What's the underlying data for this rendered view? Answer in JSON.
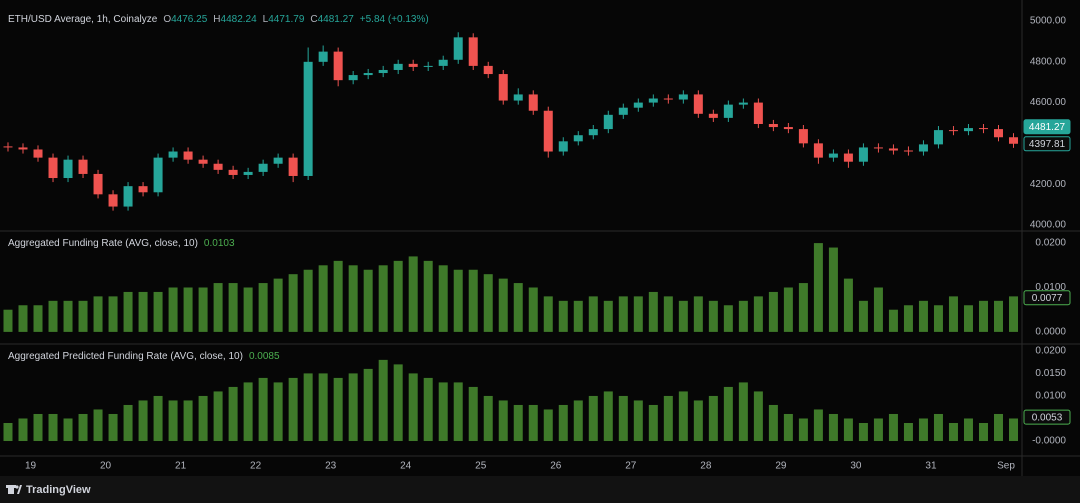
{
  "chart_data": [
    {
      "type": "candlestick",
      "title": "ETH/USD Average, 1h, Coinalyze",
      "ohlc_legend": [
        {
          "label": "O",
          "value": "4476.25"
        },
        {
          "label": "H",
          "value": "4482.24"
        },
        {
          "label": "L",
          "value": "4471.79"
        },
        {
          "label": "C",
          "value": "4481.27"
        }
      ],
      "change": "+5.84 (+0.13%)",
      "up_color": "#26a69a",
      "down_color": "#ef5350",
      "xlim": [
        18.7,
        32.2
      ],
      "x": [
        18.7,
        18.9,
        19.1,
        19.3,
        19.5,
        19.7,
        19.9,
        20.1,
        20.3,
        20.5,
        20.7,
        20.9,
        21.1,
        21.3,
        21.5,
        21.7,
        21.9,
        22.1,
        22.3,
        22.5,
        22.7,
        22.9,
        23.1,
        23.3,
        23.5,
        23.7,
        23.9,
        24.1,
        24.3,
        24.5,
        24.7,
        24.9,
        25.1,
        25.3,
        25.5,
        25.7,
        25.9,
        26.1,
        26.3,
        26.5,
        26.7,
        26.9,
        27.1,
        27.3,
        27.5,
        27.7,
        27.9,
        28.1,
        28.3,
        28.5,
        28.7,
        28.9,
        29.1,
        29.3,
        29.5,
        29.7,
        29.9,
        30.1,
        30.3,
        30.5,
        30.7,
        30.9,
        31.1,
        31.3,
        31.5,
        31.7,
        31.9,
        32.1
      ],
      "open": [
        4385,
        4380,
        4370,
        4330,
        4230,
        4320,
        4250,
        4150,
        4090,
        4190,
        4160,
        4330,
        4360,
        4320,
        4300,
        4270,
        4245,
        4260,
        4300,
        4330,
        4240,
        4800,
        4850,
        4710,
        4735,
        4745,
        4760,
        4790,
        4775,
        4780,
        4810,
        4920,
        4780,
        4740,
        4610,
        4640,
        4560,
        4360,
        4410,
        4440,
        4470,
        4540,
        4575,
        4600,
        4620,
        4615,
        4640,
        4545,
        4525,
        4590,
        4600,
        4495,
        4480,
        4470,
        4400,
        4330,
        4350,
        4310,
        4380,
        4375,
        4365,
        4360,
        4395,
        4465,
        4460,
        4475,
        4470,
        4430
      ],
      "high": [
        4405,
        4400,
        4390,
        4350,
        4340,
        4340,
        4270,
        4170,
        4210,
        4210,
        4350,
        4380,
        4380,
        4340,
        4320,
        4290,
        4280,
        4320,
        4350,
        4350,
        4870,
        4880,
        4870,
        4755,
        4765,
        4780,
        4810,
        4810,
        4800,
        4830,
        4945,
        4940,
        4800,
        4760,
        4670,
        4660,
        4580,
        4430,
        4460,
        4490,
        4560,
        4595,
        4620,
        4640,
        4640,
        4660,
        4660,
        4565,
        4610,
        4620,
        4620,
        4515,
        4500,
        4490,
        4420,
        4370,
        4370,
        4400,
        4400,
        4395,
        4385,
        4415,
        4485,
        4485,
        4495,
        4495,
        4490,
        4450
      ],
      "low": [
        4360,
        4350,
        4310,
        4210,
        4210,
        4230,
        4130,
        4070,
        4070,
        4140,
        4140,
        4310,
        4300,
        4280,
        4250,
        4225,
        4225,
        4240,
        4280,
        4210,
        4220,
        4780,
        4680,
        4690,
        4715,
        4725,
        4740,
        4755,
        4755,
        4760,
        4790,
        4760,
        4720,
        4590,
        4590,
        4540,
        4330,
        4340,
        4390,
        4420,
        4450,
        4520,
        4555,
        4580,
        4595,
        4595,
        4525,
        4505,
        4505,
        4570,
        4475,
        4460,
        4450,
        4380,
        4300,
        4310,
        4280,
        4290,
        4355,
        4345,
        4340,
        4340,
        4375,
        4440,
        4440,
        4450,
        4410,
        4378
      ],
      "close": [
        4380,
        4370,
        4330,
        4230,
        4320,
        4250,
        4150,
        4090,
        4190,
        4160,
        4330,
        4360,
        4320,
        4300,
        4270,
        4245,
        4260,
        4300,
        4330,
        4240,
        4800,
        4850,
        4710,
        4735,
        4745,
        4760,
        4790,
        4775,
        4780,
        4810,
        4920,
        4780,
        4740,
        4610,
        4640,
        4560,
        4360,
        4410,
        4440,
        4470,
        4540,
        4575,
        4600,
        4620,
        4615,
        4640,
        4545,
        4525,
        4590,
        4600,
        4495,
        4480,
        4470,
        4400,
        4330,
        4350,
        4310,
        4380,
        4375,
        4365,
        4360,
        4395,
        4465,
        4460,
        4475,
        4470,
        4430,
        4398
      ],
      "ylim": [
        3975,
        5064
      ],
      "yticks": [
        {
          "value": 4000,
          "label": "4000.00"
        },
        {
          "value": 4200,
          "label": "4200.00"
        },
        {
          "value": 4600,
          "label": "4600.00"
        },
        {
          "value": 4800,
          "label": "4800.00"
        },
        {
          "value": 5000,
          "label": "5000.00"
        }
      ],
      "markers": [
        {
          "value": 4481.27,
          "color": "#26a69a",
          "filled": true
        },
        {
          "value": 4397.81,
          "color": "#26a69a",
          "filled": false
        }
      ]
    },
    {
      "type": "bar",
      "title": "Aggregated Funding Rate (AVG, close, 10)",
      "legend_value": 0.0103,
      "color": "#3f7a2a",
      "legend_color": "#4caf50",
      "xlim": [
        18.7,
        32.2
      ],
      "x": [
        18.7,
        18.9,
        19.1,
        19.3,
        19.5,
        19.7,
        19.9,
        20.1,
        20.3,
        20.5,
        20.7,
        20.9,
        21.1,
        21.3,
        21.5,
        21.7,
        21.9,
        22.1,
        22.3,
        22.5,
        22.7,
        22.9,
        23.1,
        23.3,
        23.5,
        23.7,
        23.9,
        24.1,
        24.3,
        24.5,
        24.7,
        24.9,
        25.1,
        25.3,
        25.5,
        25.7,
        25.9,
        26.1,
        26.3,
        26.5,
        26.7,
        26.9,
        27.1,
        27.3,
        27.5,
        27.7,
        27.9,
        28.1,
        28.3,
        28.5,
        28.7,
        28.9,
        29.1,
        29.3,
        29.5,
        29.7,
        29.9,
        30.1,
        30.3,
        30.5,
        30.7,
        30.9,
        31.1,
        31.3,
        31.5,
        31.7,
        31.9,
        32.1
      ],
      "values": [
        0.005,
        0.006,
        0.006,
        0.007,
        0.007,
        0.007,
        0.008,
        0.008,
        0.009,
        0.009,
        0.009,
        0.01,
        0.01,
        0.01,
        0.011,
        0.011,
        0.01,
        0.011,
        0.012,
        0.013,
        0.014,
        0.015,
        0.016,
        0.015,
        0.014,
        0.015,
        0.016,
        0.017,
        0.016,
        0.015,
        0.014,
        0.014,
        0.013,
        0.012,
        0.011,
        0.01,
        0.008,
        0.007,
        0.007,
        0.008,
        0.007,
        0.008,
        0.008,
        0.009,
        0.008,
        0.007,
        0.008,
        0.007,
        0.006,
        0.007,
        0.008,
        0.009,
        0.01,
        0.011,
        0.02,
        0.019,
        0.012,
        0.007,
        0.01,
        0.005,
        0.006,
        0.007,
        0.006,
        0.008,
        0.006,
        0.007,
        0.007,
        0.008
      ],
      "ylim": [
        -0.0025,
        0.0225
      ],
      "yticks": [
        {
          "value": 0,
          "label": "0.0000"
        },
        {
          "value": 0.01,
          "label": "0.0100"
        },
        {
          "value": 0.02,
          "label": "0.0200"
        }
      ],
      "markers": [
        {
          "value": 0.0077,
          "color": "#4caf50",
          "filled": false
        }
      ]
    },
    {
      "type": "bar",
      "title": "Aggregated Predicted Funding Rate (AVG, close, 10)",
      "legend_value": 0.0085,
      "color": "#3f7a2a",
      "legend_color": "#4caf50",
      "xlim": [
        18.7,
        32.2
      ],
      "x": [
        18.7,
        18.9,
        19.1,
        19.3,
        19.5,
        19.7,
        19.9,
        20.1,
        20.3,
        20.5,
        20.7,
        20.9,
        21.1,
        21.3,
        21.5,
        21.7,
        21.9,
        22.1,
        22.3,
        22.5,
        22.7,
        22.9,
        23.1,
        23.3,
        23.5,
        23.7,
        23.9,
        24.1,
        24.3,
        24.5,
        24.7,
        24.9,
        25.1,
        25.3,
        25.5,
        25.7,
        25.9,
        26.1,
        26.3,
        26.5,
        26.7,
        26.9,
        27.1,
        27.3,
        27.5,
        27.7,
        27.9,
        28.1,
        28.3,
        28.5,
        28.7,
        28.9,
        29.1,
        29.3,
        29.5,
        29.7,
        29.9,
        30.1,
        30.3,
        30.5,
        30.7,
        30.9,
        31.1,
        31.3,
        31.5,
        31.7,
        31.9,
        32.1
      ],
      "values": [
        0.004,
        0.005,
        0.006,
        0.006,
        0.005,
        0.006,
        0.007,
        0.006,
        0.008,
        0.009,
        0.01,
        0.009,
        0.009,
        0.01,
        0.011,
        0.012,
        0.013,
        0.014,
        0.013,
        0.014,
        0.015,
        0.015,
        0.014,
        0.015,
        0.016,
        0.018,
        0.017,
        0.015,
        0.014,
        0.013,
        0.013,
        0.012,
        0.01,
        0.009,
        0.008,
        0.008,
        0.007,
        0.008,
        0.009,
        0.01,
        0.011,
        0.01,
        0.009,
        0.008,
        0.01,
        0.011,
        0.009,
        0.01,
        0.012,
        0.013,
        0.011,
        0.008,
        0.006,
        0.005,
        0.007,
        0.006,
        0.005,
        0.004,
        0.005,
        0.006,
        0.004,
        0.005,
        0.006,
        0.004,
        0.005,
        0.004,
        0.006,
        0.005
      ],
      "ylim": [
        -0.0031,
        0.0213
      ],
      "yticks": [
        {
          "value": 0,
          "label": "-0.0000"
        },
        {
          "value": 0.01,
          "label": "0.0100"
        },
        {
          "value": 0.015,
          "label": "0.0150"
        },
        {
          "value": 0.02,
          "label": "0.0200"
        }
      ],
      "markers": [
        {
          "value": 0.0053,
          "color": "#4caf50",
          "filled": false
        }
      ],
      "xticks": [
        19,
        20,
        21,
        22,
        23,
        24,
        25,
        26,
        27,
        28,
        29,
        30,
        31,
        {
          "value": 32,
          "label": "Sep"
        }
      ]
    }
  ],
  "footer": {
    "brand": "TradingView"
  }
}
